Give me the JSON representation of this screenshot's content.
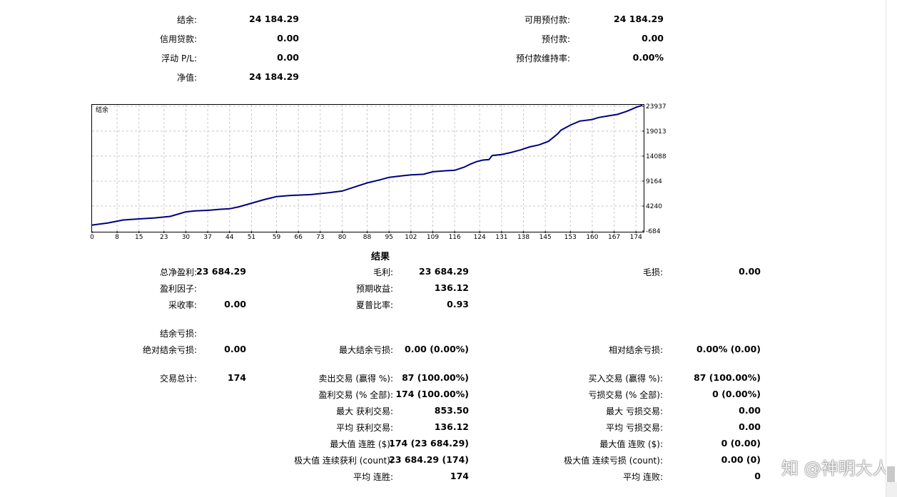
{
  "account": {
    "balance_label": "结余:",
    "balance_value": "24 184.29",
    "credit_label": "信用贷款:",
    "credit_value": "0.00",
    "floating_label": "浮动 P/L:",
    "floating_value": "0.00",
    "equity_label": "净值:",
    "equity_value": "24 184.29",
    "free_margin_label": "可用预付款:",
    "free_margin_value": "24 184.29",
    "margin_label": "预付款:",
    "margin_value": "0.00",
    "margin_level_label": "预付款维持率:",
    "margin_level_value": "0.00%"
  },
  "chart_data": {
    "type": "line",
    "title": "结余",
    "x_ticks": [
      0,
      8,
      15,
      23,
      30,
      37,
      44,
      51,
      59,
      66,
      73,
      80,
      88,
      95,
      102,
      109,
      116,
      124,
      131,
      138,
      145,
      153,
      160,
      167,
      174
    ],
    "y_ticks": [
      23937,
      19013,
      14088,
      9164,
      4240,
      -684
    ],
    "xlim": [
      0,
      176
    ],
    "ylim": [
      -684,
      24200
    ],
    "grid": true,
    "color": "#000080",
    "x": [
      0,
      5,
      10,
      15,
      20,
      25,
      30,
      33,
      37,
      41,
      44,
      47,
      51,
      55,
      59,
      63,
      66,
      70,
      73,
      76,
      80,
      84,
      88,
      92,
      95,
      99,
      102,
      106,
      109,
      113,
      116,
      119,
      121,
      123,
      125,
      127,
      128,
      131,
      134,
      137,
      140,
      143,
      146,
      149,
      150,
      153,
      156,
      160,
      162,
      165,
      168,
      171,
      174,
      176
    ],
    "y": [
      500,
      900,
      1500,
      1700,
      1900,
      2200,
      3100,
      3300,
      3400,
      3600,
      3700,
      4100,
      4800,
      5500,
      6100,
      6300,
      6400,
      6500,
      6700,
      6900,
      7200,
      8000,
      8800,
      9400,
      9900,
      10200,
      10400,
      10500,
      11000,
      11200,
      11300,
      11900,
      12500,
      13000,
      13300,
      13400,
      14200,
      14400,
      14800,
      15300,
      15900,
      16300,
      17000,
      18500,
      19200,
      20200,
      21000,
      21300,
      21700,
      22000,
      22300,
      22900,
      23700,
      24100
    ]
  },
  "results": {
    "title": "结果",
    "total_net_profit_label": "总净盈利:",
    "total_net_profit_value": "23 684.29",
    "gross_profit_label": "毛利:",
    "gross_profit_value": "23 684.29",
    "gross_loss_label": "毛损:",
    "gross_loss_value": "0.00",
    "profit_factor_label": "盈利因子:",
    "profit_factor_value": "",
    "expected_payoff_label": "预期收益:",
    "expected_payoff_value": "136.12",
    "recovery_factor_label": "采收率:",
    "recovery_factor_value": "0.00",
    "sharpe_label": "夏普比率:",
    "sharpe_value": "0.93",
    "balance_drawdown_label": "结余亏损:",
    "abs_drawdown_label": "绝对结余亏损:",
    "abs_drawdown_value": "0.00",
    "max_drawdown_label": "最大结余亏损:",
    "max_drawdown_value": "0.00 (0.00%)",
    "rel_drawdown_label": "相对结余亏损:",
    "rel_drawdown_value": "0.00% (0.00)",
    "total_trades_label": "交易总计:",
    "total_trades_value": "174",
    "short_trades_label": "卖出交易 (赢得 %):",
    "short_trades_value": "87 (100.00%)",
    "long_trades_label": "买入交易 (赢得 %):",
    "long_trades_value": "87 (100.00%)",
    "profit_trades_label": "盈利交易 (% 全部):",
    "profit_trades_value": "174 (100.00%)",
    "loss_trades_label": "亏损交易 (% 全部):",
    "loss_trades_value": "0 (0.00%)",
    "largest_profit_label": "最大 获利交易:",
    "largest_profit_value": "853.50",
    "largest_loss_label": "最大 亏损交易:",
    "largest_loss_value": "0.00",
    "avg_profit_label": "平均 获利交易:",
    "avg_profit_value": "136.12",
    "avg_loss_label": "平均 亏损交易:",
    "avg_loss_value": "0.00",
    "max_consec_wins_label": "最大值 连胜 ($):",
    "max_consec_wins_value": "174 (23 684.29)",
    "max_consec_losses_label": "最大值 连败 ($):",
    "max_consec_losses_value": "0 (0.00)",
    "maximal_consec_profit_label": "极大值 连续获利 (count):",
    "maximal_consec_profit_value": "23 684.29 (174)",
    "maximal_consec_loss_label": "极大值 连续亏损 (count):",
    "maximal_consec_loss_value": "0.00 (0)",
    "avg_consec_wins_label": "平均 连胜:",
    "avg_consec_wins_value": "174",
    "avg_consec_losses_label": "平均 连败:",
    "avg_consec_losses_value": "0"
  },
  "watermark": "知 @神明大人"
}
